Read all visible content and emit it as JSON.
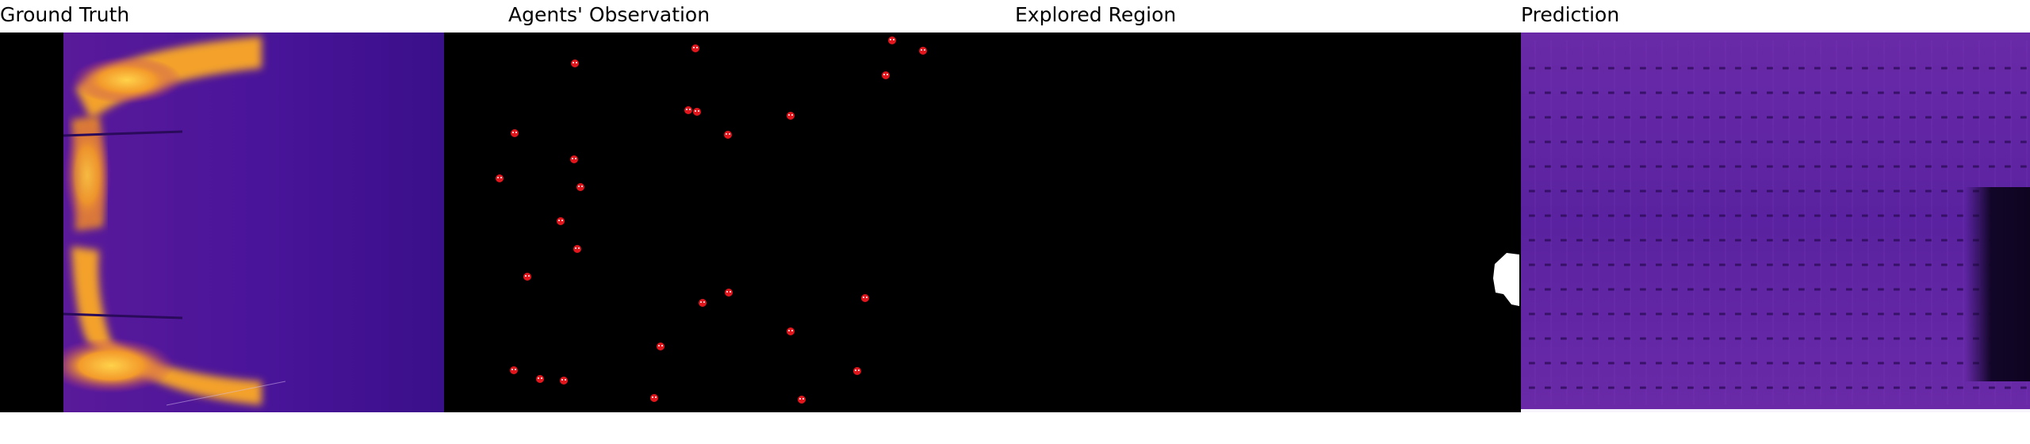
{
  "panels": [
    {
      "id": "ground-truth",
      "title": "Ground Truth"
    },
    {
      "id": "agents-observation",
      "title": "Agents' Observation"
    },
    {
      "id": "explored-region",
      "title": "Explored Region"
    },
    {
      "id": "prediction",
      "title": "Prediction"
    }
  ],
  "colors": {
    "background": "#000000",
    "heat_low": "#3a0d7a",
    "heat_mid": "#7a1fa0",
    "heat_high": "#f7b32b",
    "agent_marker": "#e0161c",
    "explored": "#ffffff"
  },
  "agent_count": 30,
  "icons": [
    "agent-marker-icon"
  ]
}
